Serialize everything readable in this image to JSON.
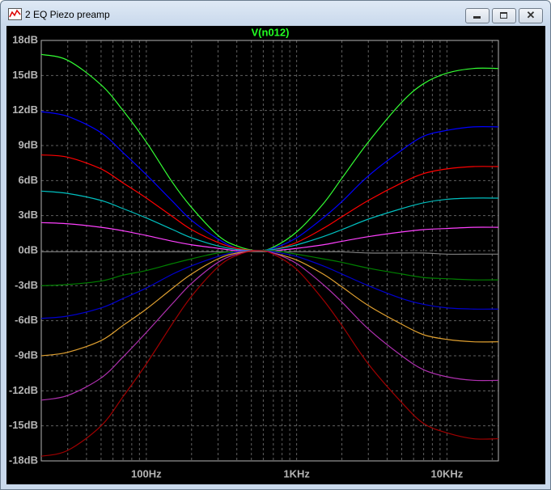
{
  "window": {
    "title": "2 EQ Piezo preamp"
  },
  "chart_data": {
    "type": "line",
    "title": "V(n012)",
    "log_x": true,
    "grid": true,
    "x": [
      20,
      30,
      50,
      70,
      100,
      150,
      200,
      300,
      400,
      550,
      700,
      1000,
      1500,
      2000,
      3000,
      5000,
      7000,
      10000,
      15000,
      22000
    ],
    "xlim": [
      20,
      22000
    ],
    "xticks": [
      {
        "value": 100,
        "label": "100Hz"
      },
      {
        "value": 1000,
        "label": "1KHz"
      },
      {
        "value": 10000,
        "label": "10KHz"
      }
    ],
    "xminorticks": [
      30,
      40,
      50,
      60,
      70,
      80,
      90,
      200,
      300,
      400,
      500,
      600,
      700,
      800,
      900,
      2000,
      3000,
      4000,
      5000,
      6000,
      7000,
      8000,
      9000,
      20000
    ],
    "ylim": [
      -18,
      18
    ],
    "yticks": [
      {
        "value": -18,
        "label": "-18dB"
      },
      {
        "value": -15,
        "label": "-15dB"
      },
      {
        "value": -12,
        "label": "-12dB"
      },
      {
        "value": -9,
        "label": "-9dB"
      },
      {
        "value": -6,
        "label": "-6dB"
      },
      {
        "value": -3,
        "label": "-3dB"
      },
      {
        "value": 0,
        "label": "0dB"
      },
      {
        "value": 3,
        "label": "3dB"
      },
      {
        "value": 6,
        "label": "6dB"
      },
      {
        "value": 9,
        "label": "9dB"
      },
      {
        "value": 12,
        "label": "12dB"
      },
      {
        "value": 15,
        "label": "15dB"
      },
      {
        "value": 18,
        "label": "18dB"
      }
    ],
    "series": [
      {
        "color": "#33ff33",
        "values": [
          16.8,
          16.3,
          14.2,
          12.0,
          9.3,
          5.8,
          3.7,
          1.3,
          0.4,
          0,
          0.3,
          1.6,
          4.0,
          6.2,
          9.3,
          12.7,
          14.3,
          15.2,
          15.6,
          15.6
        ]
      },
      {
        "color": "#0000ff",
        "values": [
          11.9,
          11.5,
          10.1,
          8.4,
          6.5,
          4.2,
          2.6,
          1.0,
          0.2,
          0,
          0.2,
          1.1,
          2.8,
          4.2,
          6.4,
          8.6,
          9.8,
          10.3,
          10.6,
          10.6
        ]
      },
      {
        "color": "#ff0000",
        "values": [
          8.2,
          8.0,
          7.0,
          5.8,
          4.5,
          2.9,
          1.8,
          0.7,
          0.2,
          0,
          0.1,
          0.7,
          1.9,
          2.9,
          4.3,
          5.8,
          6.6,
          7.0,
          7.2,
          7.2
        ]
      },
      {
        "color": "#00c0c0",
        "values": [
          5.1,
          4.9,
          4.3,
          3.6,
          2.8,
          1.8,
          1.1,
          0.4,
          0.1,
          0,
          0.1,
          0.5,
          1.2,
          1.8,
          2.7,
          3.6,
          4.1,
          4.4,
          4.5,
          4.5
        ]
      },
      {
        "color": "#ff40ff",
        "values": [
          2.4,
          2.3,
          2.0,
          1.7,
          1.3,
          0.8,
          0.5,
          0.2,
          0,
          0,
          0,
          0.2,
          0.5,
          0.8,
          1.2,
          1.6,
          1.8,
          1.9,
          2.0,
          2.0
        ]
      },
      {
        "color": "#808080",
        "values": [
          -0.1,
          -0.1,
          -0.1,
          -0.1,
          -0.1,
          -0.1,
          -0.1,
          -0.1,
          -0.1,
          -0.1,
          -0.1,
          -0.1,
          -0.1,
          -0.1,
          -0.2,
          -0.2,
          -0.2,
          -0.3,
          -0.3,
          -0.3
        ]
      },
      {
        "color": "#008000",
        "values": [
          -3,
          -2.9,
          -2.6,
          -2.1,
          -1.7,
          -1.1,
          -0.7,
          -0.2,
          -0.1,
          0,
          0,
          -0.3,
          -0.7,
          -1.0,
          -1.5,
          -2.0,
          -2.3,
          -2.4,
          -2.5,
          -2.5
        ]
      },
      {
        "color": "#0000d0",
        "values": [
          -5.8,
          -5.6,
          -4.9,
          -4.1,
          -3.2,
          -2.0,
          -1.3,
          -0.5,
          -0.1,
          0,
          -0.1,
          -0.5,
          -1.3,
          -2.0,
          -3.0,
          -4.1,
          -4.6,
          -4.9,
          -5.0,
          -5.0
        ]
      },
      {
        "color": "#e0a030",
        "values": [
          -9,
          -8.7,
          -7.7,
          -6.4,
          -5.0,
          -3.2,
          -2.0,
          -0.7,
          -0.2,
          0,
          -0.2,
          -0.8,
          -2.0,
          -3.1,
          -4.7,
          -6.3,
          -7.2,
          -7.6,
          -7.8,
          -7.8
        ]
      },
      {
        "color": "#b030b0",
        "values": [
          -12.8,
          -12.4,
          -10.9,
          -9.1,
          -7.0,
          -4.5,
          -2.8,
          -1.0,
          -0.3,
          0,
          -0.2,
          -1.1,
          -2.9,
          -4.4,
          -6.7,
          -9.0,
          -10.2,
          -10.8,
          -11.1,
          -11.1
        ]
      },
      {
        "color": "#a00000",
        "values": [
          -17.6,
          -17.1,
          -15.0,
          -12.5,
          -9.7,
          -6.2,
          -3.9,
          -1.4,
          -0.4,
          0,
          -0.3,
          -1.6,
          -4.2,
          -6.4,
          -9.7,
          -13.0,
          -14.8,
          -15.6,
          -16.1,
          -16.1
        ]
      }
    ]
  }
}
